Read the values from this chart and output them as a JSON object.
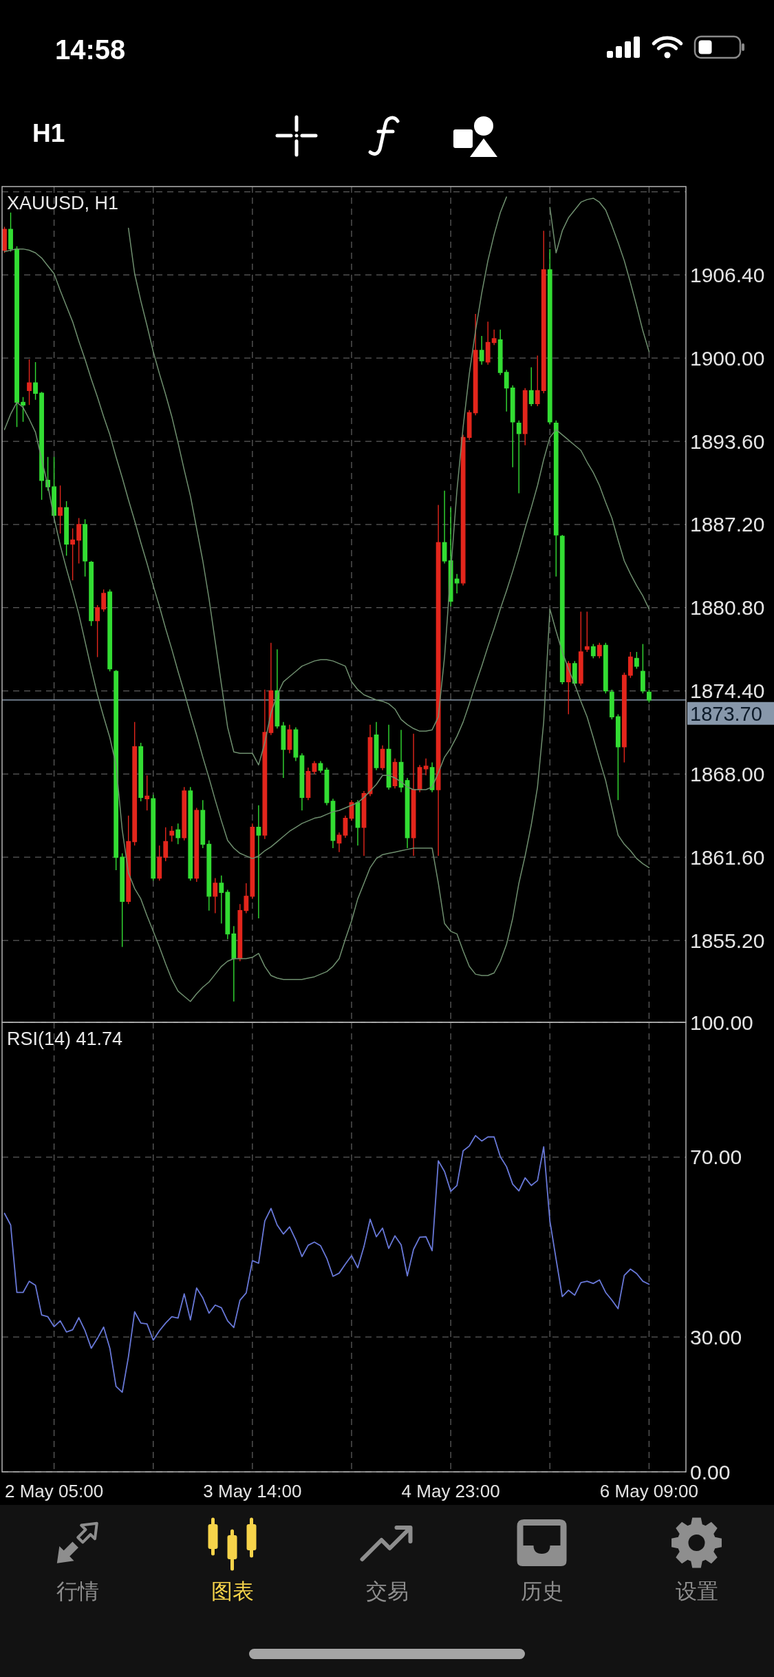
{
  "chart_data": [
    {
      "type": "other",
      "annotations": [
        "14:58",
        "H1",
        "行情",
        "图表",
        "交易",
        "历史",
        "设置"
      ]
    },
    {
      "type": "candlestick",
      "title": "XAUUSD, H1",
      "categories": [
        null,
        null,
        null,
        null,
        null,
        null,
        null,
        null,
        null,
        null,
        null,
        null,
        null,
        null,
        null,
        null,
        null,
        null,
        null,
        null,
        null,
        null,
        null,
        null,
        null,
        null,
        null,
        null,
        null,
        null,
        null,
        null,
        null,
        null,
        null,
        null,
        null,
        null,
        null,
        null,
        null,
        null,
        null,
        null,
        null,
        null,
        null,
        null,
        null,
        null,
        null,
        null,
        null,
        null,
        null,
        null,
        null,
        null,
        null,
        null,
        null,
        null,
        null,
        null,
        null,
        null,
        null,
        null,
        null,
        null,
        null,
        null,
        null,
        null,
        null,
        null,
        null,
        null,
        null,
        null,
        null,
        null,
        null,
        null,
        null,
        null,
        null,
        null,
        null,
        null,
        null,
        null,
        null,
        null,
        null,
        null,
        null,
        null,
        null,
        null,
        null,
        null,
        null,
        null,
        null
      ],
      "ohlc": [
        [
          1908.3,
          1910.1,
          1908.1,
          1909.9
        ],
        [
          1909.9,
          1911.2,
          1908.2,
          1908.4
        ],
        [
          1908.4,
          1908.6,
          1894.7,
          1896.6
        ],
        [
          1896.6,
          1897.0,
          1895.1,
          1896.4
        ],
        [
          1897.5,
          1899.9,
          1896.4,
          1898.1
        ],
        [
          1898.1,
          1899.7,
          1896.8,
          1897.3
        ],
        [
          1897.3,
          1897.4,
          1889.1,
          1890.6
        ],
        [
          1890.6,
          1892.4,
          1889.8,
          1890.1
        ],
        [
          1890.1,
          1892.4,
          1887.7,
          1887.9
        ],
        [
          1887.9,
          1890.2,
          1886.5,
          1888.5
        ],
        [
          1888.5,
          1889.0,
          1884.8,
          1885.7
        ],
        [
          1885.7,
          1886.9,
          1882.9,
          1886.0
        ],
        [
          1886.0,
          1887.7,
          1884.2,
          1887.2
        ],
        [
          1887.2,
          1887.6,
          1883.2,
          1884.4
        ],
        [
          1884.3,
          1884.4,
          1879.4,
          1879.8
        ],
        [
          1879.8,
          1881.0,
          1877.0,
          1880.8
        ],
        [
          1880.7,
          1882.2,
          1880.5,
          1881.9
        ],
        [
          1882.0,
          1882.2,
          1875.9,
          1876.1
        ],
        [
          1875.9,
          1876.0,
          1860.6,
          1861.6
        ],
        [
          1861.6,
          1861.9,
          1854.7,
          1858.2
        ],
        [
          1858.2,
          1864.8,
          1858.0,
          1862.8
        ],
        [
          1862.8,
          1872.0,
          1862.5,
          1870.1
        ],
        [
          1870.1,
          1870.4,
          1865.9,
          1866.2
        ],
        [
          1866.1,
          1867.9,
          1865.2,
          1866.3
        ],
        [
          1866.1,
          1866.4,
          1859.8,
          1860.0
        ],
        [
          1860.0,
          1862.5,
          1859.8,
          1861.6
        ],
        [
          1861.6,
          1863.9,
          1861.3,
          1862.8
        ],
        [
          1863.3,
          1864.0,
          1862.8,
          1863.6
        ],
        [
          1863.7,
          1864.2,
          1862.6,
          1863.1
        ],
        [
          1863.1,
          1867.0,
          1862.9,
          1866.7
        ],
        [
          1866.7,
          1867.0,
          1859.8,
          1860.0
        ],
        [
          1860.0,
          1865.4,
          1859.7,
          1865.2
        ],
        [
          1865.2,
          1866.0,
          1862.3,
          1862.6
        ],
        [
          1862.6,
          1862.9,
          1857.5,
          1858.6
        ],
        [
          1858.6,
          1860.0,
          1857.3,
          1859.6
        ],
        [
          1859.6,
          1860.2,
          1856.5,
          1858.9
        ],
        [
          1858.9,
          1859.1,
          1855.3,
          1855.7
        ],
        [
          1855.7,
          1856.3,
          1850.5,
          1853.8
        ],
        [
          1853.8,
          1858.0,
          1853.6,
          1857.5
        ],
        [
          1857.5,
          1859.6,
          1857.3,
          1858.6
        ],
        [
          1858.6,
          1864.2,
          1858.4,
          1863.9
        ],
        [
          1863.9,
          1865.6,
          1856.9,
          1863.3
        ],
        [
          1863.3,
          1874.5,
          1863.0,
          1871.2
        ],
        [
          1871.2,
          1878.1,
          1871.0,
          1874.4
        ],
        [
          1874.4,
          1877.6,
          1871.5,
          1871.7
        ],
        [
          1871.7,
          1872.0,
          1867.7,
          1869.9
        ],
        [
          1869.9,
          1871.8,
          1869.6,
          1871.4
        ],
        [
          1871.4,
          1871.6,
          1869.0,
          1869.3
        ],
        [
          1869.4,
          1869.6,
          1865.2,
          1866.2
        ],
        [
          1866.2,
          1868.5,
          1866.0,
          1868.2
        ],
        [
          1868.2,
          1869.0,
          1868.0,
          1868.8
        ],
        [
          1868.8,
          1869.0,
          1868.1,
          1868.3
        ],
        [
          1868.3,
          1868.5,
          1865.6,
          1865.8
        ],
        [
          1865.9,
          1866.1,
          1862.3,
          1862.9
        ],
        [
          1862.7,
          1863.5,
          1862.0,
          1863.3
        ],
        [
          1863.3,
          1864.8,
          1863.1,
          1864.6
        ],
        [
          1864.6,
          1866.0,
          1864.4,
          1865.8
        ],
        [
          1865.8,
          1866.0,
          1862.5,
          1863.9
        ],
        [
          1863.9,
          1866.7,
          1861.7,
          1866.5
        ],
        [
          1866.5,
          1871.8,
          1866.3,
          1870.8
        ],
        [
          1871.0,
          1872.0,
          1868.3,
          1868.5
        ],
        [
          1868.5,
          1870.2,
          1868.3,
          1869.9
        ],
        [
          1869.9,
          1871.8,
          1866.8,
          1867.0
        ],
        [
          1867.1,
          1869.2,
          1866.9,
          1868.9
        ],
        [
          1868.9,
          1871.4,
          1866.6,
          1867.0
        ],
        [
          1867.5,
          1867.7,
          1862.3,
          1863.1
        ],
        [
          1863.1,
          1871.1,
          1861.7,
          1866.8
        ],
        [
          1866.8,
          1868.7,
          1866.6,
          1868.5
        ],
        [
          1868.4,
          1869.2,
          1867.9,
          1868.6
        ],
        [
          1868.5,
          1868.9,
          1866.6,
          1866.8
        ],
        [
          1866.8,
          1888.7,
          1861.7,
          1885.8
        ],
        [
          1885.8,
          1889.8,
          1884.2,
          1884.4
        ],
        [
          1884.4,
          1888.5,
          1880.9,
          1881.3
        ],
        [
          1883.0,
          1883.4,
          1881.9,
          1882.7
        ],
        [
          1882.7,
          1894.1,
          1882.5,
          1893.9
        ],
        [
          1893.9,
          1896.0,
          1893.7,
          1895.8
        ],
        [
          1895.8,
          1903.4,
          1895.6,
          1900.6
        ],
        [
          1900.6,
          1901.7,
          1899.5,
          1899.8
        ],
        [
          1899.7,
          1902.8,
          1899.5,
          1901.2
        ],
        [
          1901.2,
          1902.2,
          1901.0,
          1901.5
        ],
        [
          1901.4,
          1902.2,
          1898.7,
          1898.9
        ],
        [
          1898.9,
          1899.1,
          1895.9,
          1897.7
        ],
        [
          1897.7,
          1897.9,
          1891.6,
          1895.1
        ],
        [
          1895.0,
          1895.2,
          1889.6,
          1894.2
        ],
        [
          1894.2,
          1897.7,
          1893.3,
          1897.5
        ],
        [
          1897.5,
          1899.3,
          1896.3,
          1896.5
        ],
        [
          1896.5,
          1900.2,
          1896.3,
          1897.5
        ],
        [
          1897.5,
          1909.8,
          1897.3,
          1906.8
        ],
        [
          1906.8,
          1908.4,
          1894.9,
          1895.1
        ],
        [
          1895.0,
          1895.2,
          1883.2,
          1886.4
        ],
        [
          1886.3,
          1886.4,
          1874.9,
          1875.1
        ],
        [
          1875.1,
          1876.7,
          1872.6,
          1876.5
        ],
        [
          1876.5,
          1876.7,
          1874.8,
          1875.0
        ],
        [
          1875.0,
          1880.5,
          1874.8,
          1877.4
        ],
        [
          1877.6,
          1880.5,
          1877.4,
          1877.8
        ],
        [
          1877.8,
          1878.0,
          1876.9,
          1877.1
        ],
        [
          1877.1,
          1878.1,
          1876.9,
          1877.9
        ],
        [
          1877.9,
          1878.1,
          1874.2,
          1874.4
        ],
        [
          1874.3,
          1874.5,
          1872.2,
          1872.4
        ],
        [
          1872.4,
          1872.6,
          1866.0,
          1870.1
        ],
        [
          1870.1,
          1875.8,
          1868.9,
          1875.6
        ],
        [
          1875.6,
          1877.4,
          1875.4,
          1877.0
        ],
        [
          1876.9,
          1877.4,
          1876.1,
          1876.3
        ],
        [
          1875.9,
          1878.0,
          1874.2,
          1874.4
        ],
        [
          1874.3,
          1874.5,
          1873.5,
          1873.7
        ]
      ],
      "colors": [
        "#e3261c",
        "#33dd33",
        "#33dd33",
        "#33dd33",
        "#e3261c",
        "#33dd33",
        "#33dd33",
        "#33dd33",
        "#33dd33",
        "#e3261c",
        "#33dd33",
        "#e3261c",
        "#e3261c",
        "#33dd33",
        "#33dd33",
        "#e3261c",
        "#e3261c",
        "#33dd33",
        "#33dd33",
        "#33dd33",
        "#e3261c",
        "#e3261c",
        "#33dd33",
        "#e3261c",
        "#33dd33",
        "#e3261c",
        "#e3261c",
        "#e3261c",
        "#33dd33",
        "#e3261c",
        "#33dd33",
        "#e3261c",
        "#33dd33",
        "#33dd33",
        "#e3261c",
        "#33dd33",
        "#33dd33",
        "#33dd33",
        "#e3261c",
        "#e3261c",
        "#e3261c",
        "#33dd33",
        "#e3261c",
        "#e3261c",
        "#33dd33",
        "#33dd33",
        "#e3261c",
        "#33dd33",
        "#33dd33",
        "#e3261c",
        "#e3261c",
        "#33dd33",
        "#33dd33",
        "#33dd33",
        "#e3261c",
        "#e3261c",
        "#e3261c",
        "#33dd33",
        "#e3261c",
        "#e3261c",
        "#33dd33",
        "#e3261c",
        "#33dd33",
        "#e3261c",
        "#33dd33",
        "#33dd33",
        "#e3261c",
        "#e3261c",
        "#e3261c",
        "#33dd33",
        "#e3261c",
        "#33dd33",
        "#33dd33",
        "#33dd33",
        "#e3261c",
        "#e3261c",
        "#e3261c",
        "#33dd33",
        "#e3261c",
        "#e3261c",
        "#33dd33",
        "#33dd33",
        "#33dd33",
        "#33dd33",
        "#e3261c",
        "#33dd33",
        "#e3261c",
        "#e3261c",
        "#33dd33",
        "#33dd33",
        "#33dd33",
        "#e3261c",
        "#33dd33",
        "#e3261c",
        "#e3261c",
        "#33dd33",
        "#e3261c",
        "#33dd33",
        "#33dd33",
        "#33dd33",
        "#e3261c",
        "#e3261c",
        "#33dd33",
        "#33dd33",
        "#33dd33"
      ],
      "series": [
        {
          "type": "line",
          "color": "#6f8f6f",
          "values": [
            null,
            null,
            null,
            null,
            null,
            null,
            null,
            null,
            null,
            null,
            null,
            null,
            null,
            null,
            null,
            null,
            null,
            null,
            null,
            null,
            1910.0,
            1906.5,
            1904.4,
            1902.5,
            1900.5,
            1898.8,
            1897.2,
            1895.5,
            1893.5,
            1891.4,
            1889.4,
            1886.9,
            1884.4,
            1881.5,
            1878.2,
            1874.9,
            1871.6,
            1869.7,
            1869.6,
            1869.6,
            1869.6,
            1868.7,
            1870.4,
            1872.7,
            1874.1,
            1875.1,
            1875.5,
            1875.9,
            1876.3,
            1876.5,
            1876.7,
            1876.8,
            1876.8,
            1876.7,
            1876.5,
            1876.3,
            1875.1,
            1874.5,
            1874.1,
            1873.9,
            1873.7,
            1873.6,
            1873.4,
            1873.0,
            1872.2,
            1871.8,
            1871.5,
            1871.3,
            1871.3,
            1871.4,
            1872.4,
            1877.0,
            1883.6,
            1889.8,
            1894.7,
            1898.8,
            1902.1,
            1905.0,
            1907.5,
            1909.5,
            1911.2,
            1912.4,
            null,
            null,
            null,
            null,
            null,
            null,
            1911.6,
            1908.1,
            1909.8,
            1910.8,
            1911.4,
            1912.0,
            1912.2,
            1912.3,
            1912.0,
            1911.4,
            1910.2,
            1908.9,
            1907.5,
            1905.8,
            1904.0,
            1902.1,
            1900.5
          ]
        },
        {
          "type": "line",
          "color": "#6f8f6f",
          "values": [
            1908.2,
            1908.3,
            1908.4,
            1908.4,
            1908.3,
            1908.1,
            1907.7,
            1907.1,
            1906.5,
            1905.2,
            1904.0,
            1902.8,
            1901.3,
            1899.9,
            1898.4,
            1897.0,
            1895.5,
            1894.1,
            1892.4,
            1890.8,
            1889.1,
            1887.5,
            1885.8,
            1884.2,
            1882.5,
            1880.9,
            1879.2,
            1877.6,
            1875.9,
            1874.3,
            1872.6,
            1871.0,
            1869.3,
            1867.7,
            1866.0,
            1864.4,
            1862.9,
            1862.3,
            1861.9,
            1861.7,
            1861.5,
            1861.7,
            1862.1,
            1862.4,
            1862.8,
            1863.2,
            1863.6,
            1863.9,
            1864.2,
            1864.4,
            1864.6,
            1864.7,
            1864.9,
            1865.1,
            1865.2,
            1865.4,
            1865.6,
            1865.8,
            1866.2,
            1866.7,
            1867.2,
            1867.9,
            1867.9,
            1867.7,
            1867.4,
            1867.0,
            1866.8,
            1866.8,
            1866.8,
            1867.0,
            1868.1,
            1869.3,
            1870.0,
            1870.9,
            1872.0,
            1873.4,
            1874.9,
            1876.3,
            1877.8,
            1879.2,
            1880.7,
            1882.1,
            1883.6,
            1885.2,
            1886.9,
            1888.5,
            1890.2,
            1892.2,
            1893.9,
            1894.5,
            1894.1,
            1893.7,
            1893.3,
            1892.9,
            1892.0,
            1891.2,
            1890.2,
            1888.9,
            1887.7,
            1886.0,
            1884.4,
            1883.4,
            1882.5,
            1881.7,
            1880.7
          ]
        },
        {
          "type": "line",
          "color": "#6f8f6f",
          "values": [
            1894.5,
            1895.7,
            1896.6,
            1896.2,
            1895.3,
            1894.3,
            1892.2,
            1890.2,
            1887.7,
            1885.6,
            1883.8,
            1882.1,
            1880.3,
            1878.2,
            1876.1,
            1874.1,
            1872.4,
            1870.8,
            1868.7,
            1863.7,
            1860.4,
            1859.2,
            1858.4,
            1857.1,
            1855.9,
            1854.7,
            1853.4,
            1852.2,
            1851.3,
            1850.9,
            1850.5,
            1851.1,
            1851.6,
            1852.0,
            1852.6,
            1853.2,
            1853.6,
            1853.8,
            1853.8,
            1853.8,
            1853.9,
            1854.2,
            1853.2,
            1852.5,
            1852.3,
            1852.2,
            1852.2,
            1852.2,
            1852.2,
            1852.3,
            1852.4,
            1852.6,
            1852.8,
            1853.2,
            1853.8,
            1855.3,
            1856.7,
            1858.4,
            1859.6,
            1860.8,
            1861.5,
            1861.8,
            1861.9,
            1862.0,
            1862.1,
            1862.2,
            1862.3,
            1862.3,
            1862.3,
            1862.3,
            1859.6,
            1856.5,
            1855.9,
            1855.7,
            1854.4,
            1853.2,
            1852.6,
            1852.5,
            1852.5,
            1852.7,
            1853.6,
            1854.9,
            1856.9,
            1859.6,
            1861.7,
            1864.1,
            1867.0,
            1872.0,
            1880.7,
            1879.0,
            1877.4,
            1876.1,
            1874.9,
            1873.6,
            1872.4,
            1870.8,
            1869.1,
            1867.5,
            1865.4,
            1863.3,
            1862.6,
            1862.1,
            1861.5,
            1861.1,
            1860.8
          ]
        }
      ],
      "ylim": [
        1848.9,
        1913.2
      ],
      "yticks": [
        {
          "value": 1855.2,
          "label": "1855.20"
        },
        {
          "value": 1861.6,
          "label": "1861.60"
        },
        {
          "value": 1868,
          "label": "1868.00"
        },
        {
          "value": 1874.4,
          "label": "1874.40"
        },
        {
          "value": 1880.8,
          "label": "1880.80"
        },
        {
          "value": 1887.2,
          "label": "1887.20"
        },
        {
          "value": 1893.6,
          "label": "1893.60"
        },
        {
          "value": 1900,
          "label": "1900.00"
        },
        {
          "value": 1906.4,
          "label": "1906.40"
        },
        {
          "value": 1912.8,
          "label": null
        }
      ],
      "ref_lines": [
        {
          "axis": "y",
          "value": 1873.7,
          "label": "1873.70",
          "color": "#8797aa"
        }
      ],
      "grid": true,
      "tick_labels": "y"
    },
    {
      "type": "line",
      "title": "RSI(14) 41.74",
      "categories": [
        null,
        null,
        null,
        null,
        null,
        null,
        null,
        null,
        "2 May 05:00",
        null,
        null,
        null,
        null,
        null,
        null,
        null,
        null,
        null,
        null,
        null,
        null,
        null,
        null,
        null,
        null,
        null,
        null,
        null,
        null,
        null,
        null,
        null,
        null,
        null,
        null,
        null,
        null,
        null,
        null,
        null,
        "3 May 14:00",
        null,
        null,
        null,
        null,
        null,
        null,
        null,
        null,
        null,
        null,
        null,
        null,
        null,
        null,
        null,
        null,
        null,
        null,
        null,
        null,
        null,
        null,
        null,
        null,
        null,
        null,
        null,
        null,
        null,
        null,
        null,
        "4 May 23:00",
        null,
        null,
        null,
        null,
        null,
        null,
        null,
        null,
        null,
        null,
        null,
        null,
        null,
        null,
        null,
        null,
        null,
        null,
        null,
        null,
        null,
        null,
        null,
        null,
        null,
        null,
        null,
        null,
        null,
        null,
        null,
        "6 May 09:00"
      ],
      "values": [
        57.5,
        54.9,
        39.9,
        39.9,
        42.4,
        41.5,
        34.9,
        34.5,
        32.3,
        33.6,
        31.1,
        31.6,
        34.3,
        31.4,
        27.5,
        29.7,
        32.2,
        27.5,
        19.0,
        17.7,
        25.6,
        35.6,
        33.1,
        32.9,
        29.3,
        31.4,
        33.1,
        34.5,
        34.2,
        39.6,
        33.8,
        40.9,
        38.7,
        35.3,
        37.1,
        36.5,
        33.6,
        32.1,
        38.2,
        39.8,
        47.0,
        46.4,
        55.8,
        58.6,
        54.9,
        52.9,
        54.5,
        51.6,
        47.9,
        50.4,
        51.1,
        50.3,
        47.5,
        43.5,
        44.2,
        46.2,
        48.1,
        45.4,
        50.1,
        56.2,
        52.3,
        54.2,
        49.7,
        52.5,
        50.5,
        43.6,
        49.5,
        52.2,
        52.3,
        49.2,
        69.2,
        66.8,
        62.4,
        63.7,
        71.4,
        72.5,
        74.8,
        73.6,
        74.5,
        74.5,
        70.1,
        67.9,
        64.0,
        62.5,
        65.4,
        63.7,
        64.8,
        72.3,
        55.8,
        47.3,
        39.0,
        40.4,
        39.3,
        42.1,
        42.4,
        41.9,
        42.7,
        39.9,
        38.2,
        36.3,
        43.7,
        45.1,
        44.1,
        42.4,
        41.74
      ],
      "color": "#6878d8",
      "ylim": [
        0,
        100
      ],
      "yticks": [
        {
          "value": 0,
          "label": "0.00"
        },
        {
          "value": 30,
          "label": "30.00"
        },
        {
          "value": 70,
          "label": "70.00"
        },
        {
          "value": 100,
          "label": "100.00"
        }
      ],
      "grid": true
    }
  ]
}
